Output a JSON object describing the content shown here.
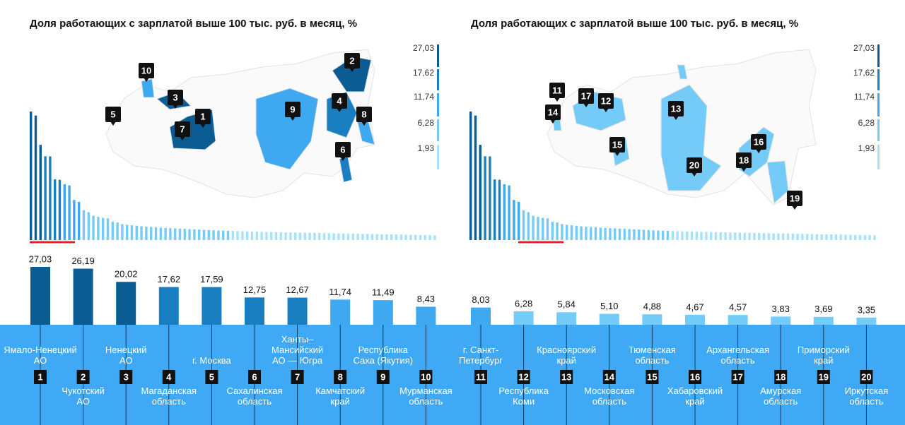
{
  "chart_data": [
    {
      "type": "map",
      "title": "Доля работающих с зарплатой выше 100 тыс. руб. в месяц, %",
      "legend_ticks": [
        {
          "value": 27.03,
          "label": "27,03"
        },
        {
          "value": 17.62,
          "label": "17,62"
        },
        {
          "value": 11.74,
          "label": "11,74"
        },
        {
          "value": 6.28,
          "label": "6,28"
        },
        {
          "value": 1.93,
          "label": "1,93"
        }
      ],
      "legend_colors": [
        "#0b5c93",
        "#1a7fc1",
        "#3ea8f0",
        "#74cbf7",
        "#a6e3fb"
      ],
      "markers": [
        10,
        3,
        5,
        1,
        7,
        9,
        4,
        2,
        8,
        6
      ],
      "distribution": [
        27.03,
        26.19,
        20.02,
        17.62,
        17.59,
        12.75,
        12.67,
        11.74,
        11.49,
        8.43,
        8.03,
        6.28,
        5.84,
        5.1,
        4.88,
        4.67,
        4.57,
        3.83,
        3.69,
        3.35,
        3.2,
        3.1,
        3.0,
        2.9,
        2.8,
        2.75,
        2.7,
        2.6,
        2.55,
        2.5,
        2.45,
        2.4,
        2.35,
        2.3,
        2.25,
        2.2,
        2.15,
        2.1,
        2.05,
        2.0,
        1.97,
        1.94,
        1.91,
        1.88,
        1.85,
        1.82,
        1.79,
        1.76,
        1.73,
        1.7,
        1.68,
        1.66,
        1.64,
        1.62,
        1.6,
        1.58,
        1.56,
        1.54,
        1.52,
        1.5,
        1.48,
        1.46,
        1.44,
        1.42,
        1.4,
        1.38,
        1.36,
        1.34,
        1.32,
        1.3,
        1.28,
        1.26,
        1.24,
        1.22,
        1.2,
        1.18,
        1.16,
        1.14,
        1.12,
        1.1,
        1.08,
        1.06,
        1.04,
        1.02,
        1.0
      ]
    },
    {
      "type": "map",
      "title": "Доля работающих с зарплатой выше 100 тыс. руб. в месяц, %",
      "legend_ticks": [
        {
          "value": 27.03,
          "label": "27,03"
        },
        {
          "value": 17.62,
          "label": "17,62"
        },
        {
          "value": 11.74,
          "label": "11,74"
        },
        {
          "value": 6.28,
          "label": "6,28"
        },
        {
          "value": 1.93,
          "label": "1,93"
        }
      ],
      "markers": [
        11,
        17,
        12,
        14,
        13,
        15,
        16,
        20,
        18,
        19
      ]
    },
    {
      "type": "bar",
      "categories": [
        "Ямало-Ненецкий\nАО",
        "Чукотский\nАО",
        "Ненецкий\nАО",
        "Магаданская\nобласть",
        "г. Москва",
        "Сахалинская\nобласть",
        "Ханты–\nМансийский\nАО — Югра",
        "Камчатский\nкрай",
        "Республика\nСаха (Якутия)",
        "Мурманская\nобласть",
        "г. Санкт-\nПетербург",
        "Республика\nКоми",
        "Красноярский\nкрай",
        "Московская\nобласть",
        "Тюменская\nобласть",
        "Хабаровский\nкрай",
        "Архангельская\nобласть",
        "Амурская\nобласть",
        "Приморский\nкрай",
        "Иркутская\nобласть"
      ],
      "ranks": [
        1,
        2,
        3,
        4,
        5,
        6,
        7,
        8,
        9,
        10,
        11,
        12,
        13,
        14,
        15,
        16,
        17,
        18,
        19,
        20
      ],
      "values": [
        27.03,
        26.19,
        20.02,
        17.62,
        17.59,
        12.75,
        12.67,
        11.74,
        11.49,
        8.43,
        8.03,
        6.28,
        5.84,
        5.1,
        4.88,
        4.67,
        4.57,
        3.83,
        3.69,
        3.35
      ],
      "value_labels": [
        "27,03",
        "26,19",
        "20,02",
        "17,62",
        "17,59",
        "12,75",
        "12,67",
        "11,74",
        "11,49",
        "8,43",
        "8,03",
        "6,28",
        "5,84",
        "5,10",
        "4,88",
        "4,67",
        "4,57",
        "3,83",
        "3,69",
        "3,35"
      ]
    }
  ]
}
